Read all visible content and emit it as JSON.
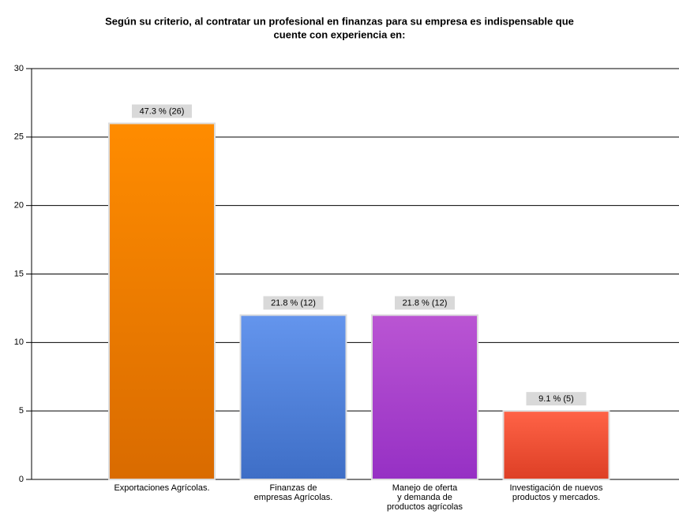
{
  "chart_data": {
    "type": "bar",
    "title": [
      "Según su criterio, al contratar un profesional en finanzas para su empresa es indispensable que",
      "cuente con experiencia en:"
    ],
    "categories": [
      [
        "Exportaciones Agrícolas."
      ],
      [
        "Finanzas de",
        "empresas Agrícolas."
      ],
      [
        "Manejo de oferta",
        "y demanda de",
        "productos agrícolas"
      ],
      [
        "Investigación de nuevos",
        "productos y mercados."
      ]
    ],
    "values": [
      26,
      12,
      12,
      5
    ],
    "value_labels": [
      "47.3 % (26)",
      "21.8 % (12)",
      "21.8 % (12)",
      "9.1 % (5)"
    ],
    "colors": [
      [
        "#ff8c00",
        "#d96b00"
      ],
      [
        "#6495ed",
        "#3e6ec6"
      ],
      [
        "#ba55d3",
        "#9630c4"
      ],
      [
        "#ff6347",
        "#dd3f25"
      ]
    ],
    "ylim": [
      0,
      30
    ],
    "yticks": [
      0,
      5,
      10,
      15,
      20,
      25,
      30
    ],
    "grid": true
  }
}
